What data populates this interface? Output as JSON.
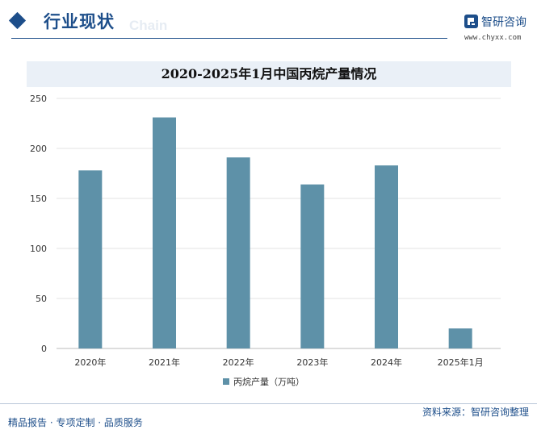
{
  "header": {
    "section_title": "行业现状",
    "ghost_text": "Chain",
    "brand_name": "智研咨询",
    "brand_url": "www.chyxx.com",
    "brand_color": "#1d4e8a"
  },
  "chart_data": {
    "type": "bar",
    "title": "2020-2025年1月中国丙烷产量情况",
    "categories": [
      "2020年",
      "2021年",
      "2022年",
      "2023年",
      "2024年",
      "2025年1月"
    ],
    "series": [
      {
        "name": "丙烷产量（万吨）",
        "values": [
          178,
          231,
          191,
          164,
          183,
          20
        ],
        "color": "#5e91a8"
      }
    ],
    "ylim": [
      0,
      250
    ],
    "yticks": [
      0,
      50,
      100,
      150,
      200,
      250
    ],
    "grid": true,
    "legend_position": "bottom"
  },
  "footer": {
    "left_text": "精品报告 · 专项定制 · 品质服务",
    "source_text": "资料来源：智研咨询整理"
  }
}
